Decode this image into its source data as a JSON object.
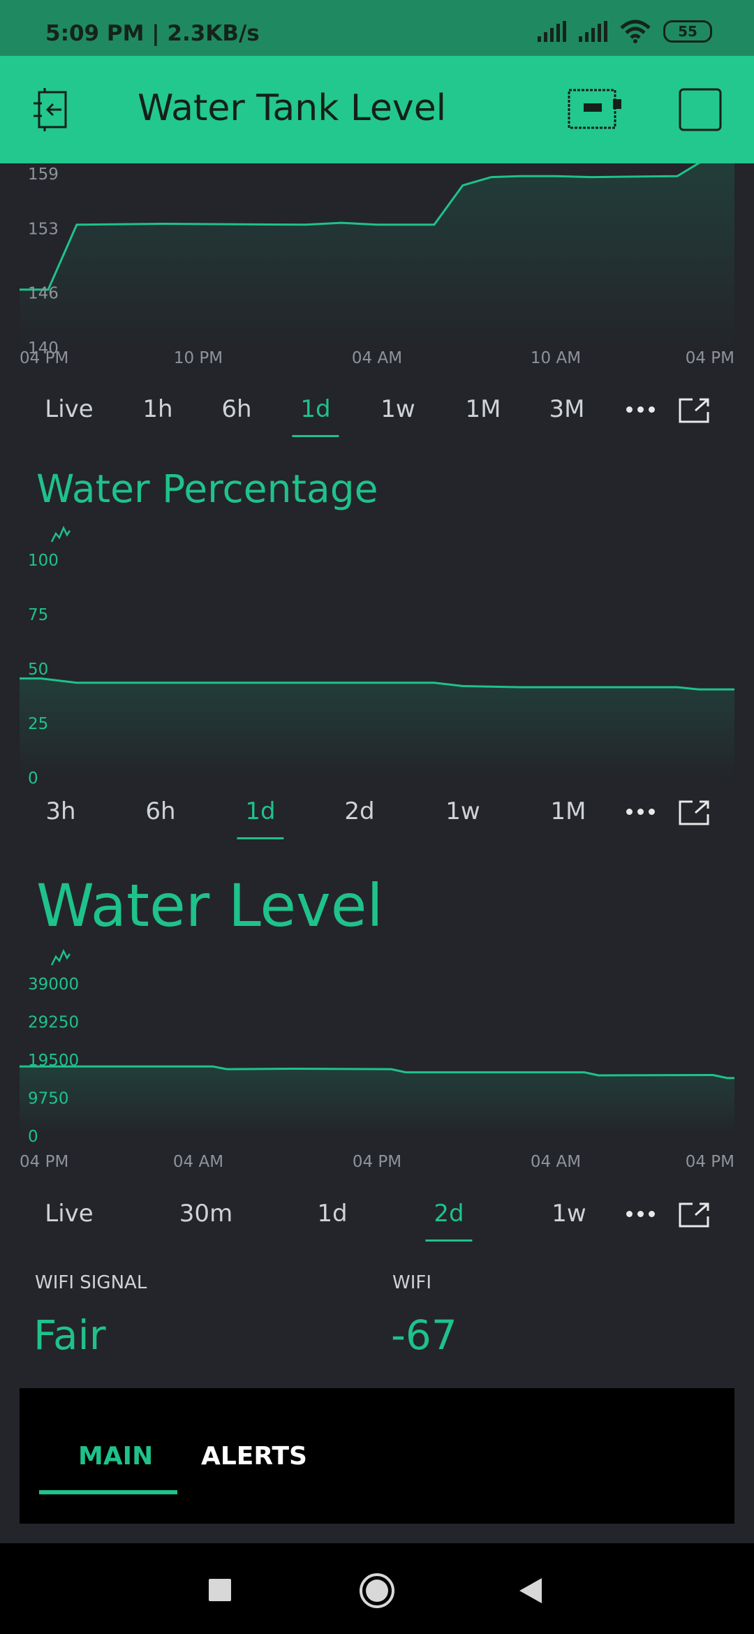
{
  "status_bar": {
    "time_speed": "5:09 PM | 2.3KB/s",
    "battery": "55"
  },
  "app_bar": {
    "title": "Water Tank Level"
  },
  "chart_data": [
    {
      "type": "area",
      "x_tick_labels": [
        "04 PM",
        "10 PM",
        "04 AM",
        "10 AM",
        "04 PM"
      ],
      "y_tick_labels": [
        "159",
        "153",
        "146",
        "140"
      ],
      "y_ticks": [
        159,
        153,
        146,
        140
      ],
      "ylim": [
        140,
        160
      ],
      "x": [
        0,
        0.04,
        0.08,
        0.2,
        0.4,
        0.45,
        0.5,
        0.58,
        0.62,
        0.66,
        0.7,
        0.75,
        0.8,
        0.92,
        0.96,
        1.0
      ],
      "series": [
        {
          "values": [
            146.2,
            146.2,
            153.3,
            153.4,
            153.3,
            153.5,
            153.3,
            153.3,
            157.6,
            158.5,
            158.6,
            158.6,
            158.5,
            158.6,
            160.5,
            160.5
          ]
        }
      ]
    },
    {
      "type": "area",
      "title": "Water Percentage",
      "y_tick_labels": [
        "100",
        "75",
        "50",
        "25",
        "0"
      ],
      "y_ticks": [
        100,
        75,
        50,
        25,
        0
      ],
      "ylim": [
        0,
        100
      ],
      "x": [
        0,
        0.03,
        0.08,
        0.3,
        0.58,
        0.62,
        0.7,
        0.92,
        0.95,
        1.0
      ],
      "series": [
        {
          "values": [
            45,
            45,
            43,
            43,
            43,
            41.5,
            41,
            41,
            40,
            40
          ]
        }
      ]
    },
    {
      "type": "area",
      "title": "Water Level",
      "x_tick_labels": [
        "04 PM",
        "04 AM",
        "04 PM",
        "04 AM",
        "04 PM"
      ],
      "y_tick_labels": [
        "39000",
        "29250",
        "19500",
        "9750",
        "0"
      ],
      "y_ticks": [
        39000,
        29250,
        19500,
        9750,
        0
      ],
      "ylim": [
        0,
        39000
      ],
      "x": [
        0,
        0.05,
        0.27,
        0.29,
        0.38,
        0.52,
        0.54,
        0.79,
        0.81,
        0.97,
        0.99,
        1.0
      ],
      "series": [
        {
          "values": [
            17500,
            17500,
            17500,
            16800,
            16900,
            16800,
            16000,
            16000,
            15200,
            15300,
            14500,
            14500
          ]
        }
      ]
    }
  ],
  "chart1_tabs": [
    "Live",
    "1h",
    "6h",
    "1d",
    "1w",
    "1M",
    "3M"
  ],
  "chart2_tabs": [
    "3h",
    "6h",
    "1d",
    "2d",
    "1w",
    "1M"
  ],
  "chart3_tabs": [
    "Live",
    "30m",
    "1d",
    "2d",
    "1w"
  ],
  "active": {
    "chart1": "1d",
    "chart2": "1d",
    "chart3": "2d"
  },
  "wifi_signal": {
    "label": "WIFI SIGNAL",
    "value": "Fair"
  },
  "wifi": {
    "label": "WIFI",
    "value": "-67"
  },
  "bottom_tabs": {
    "main": "MAIN",
    "alerts": "ALERTS"
  },
  "colors": {
    "accent": "#1fc28a",
    "header": "#23c88e",
    "background": "#23252a"
  },
  "icons": {
    "back": "exit-icon",
    "device": "device-icon",
    "square": "square-icon"
  }
}
